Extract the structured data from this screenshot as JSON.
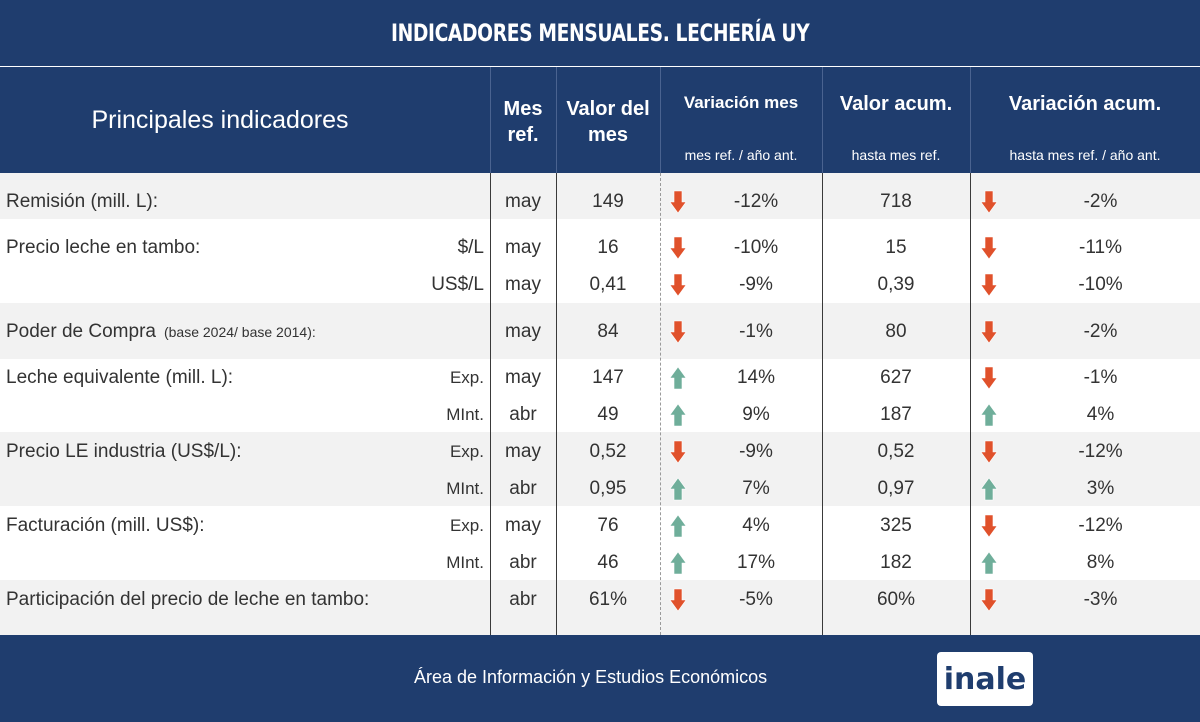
{
  "title": "INDICADORES MENSUALES. LECHERÍA UY",
  "header": {
    "principal": "Principales indicadores",
    "mes_ref_line1": "Mes",
    "mes_ref_line2": "ref.",
    "valor_line1": "Valor del",
    "valor_line2": "mes",
    "var_mes_top": "Variación mes",
    "var_mes_bottom": "mes ref. / año ant.",
    "val_acum_top": "Valor acum.",
    "val_acum_bottom": "hasta mes ref.",
    "var_acum_top": "Variación acum.",
    "var_acum_bottom": "hasta mes ref. / año ant."
  },
  "colors": {
    "navy": "#1f3d6e",
    "arrow_down": "#e0512b",
    "arrow_up": "#6fae9a",
    "row_shade": "#f2f2f2"
  },
  "rows": [
    {
      "label": "Remisión (mill. L):",
      "note": "",
      "unit": "",
      "mes": "may",
      "valor": "149",
      "var_mes_dir": "down",
      "var_mes": "-12%",
      "acum": "718",
      "var_acum_dir": "down",
      "var_acum": "-2%"
    },
    {
      "label": "Precio leche en tambo:",
      "note": "",
      "unit": "$/L",
      "mes": "may",
      "valor": "16",
      "var_mes_dir": "down",
      "var_mes": "-10%",
      "acum": "15",
      "var_acum_dir": "down",
      "var_acum": "-11%"
    },
    {
      "label": "",
      "note": "",
      "unit": "US$/L",
      "mes": "may",
      "valor": "0,41",
      "var_mes_dir": "down",
      "var_mes": "-9%",
      "acum": "0,39",
      "var_acum_dir": "down",
      "var_acum": "-10%"
    },
    {
      "label": "Poder de Compra",
      "note": "(base 2024/ base 2014):",
      "unit": "",
      "mes": "may",
      "valor": "84",
      "var_mes_dir": "down",
      "var_mes": "-1%",
      "acum": "80",
      "var_acum_dir": "down",
      "var_acum": "-2%"
    },
    {
      "label": "Leche equivalente (mill. L):",
      "note": "",
      "unit": "Exp.",
      "mes": "may",
      "valor": "147",
      "var_mes_dir": "up",
      "var_mes": "14%",
      "acum": "627",
      "var_acum_dir": "down",
      "var_acum": "-1%"
    },
    {
      "label": "",
      "note": "",
      "unit": "MInt.",
      "mes": "abr",
      "valor": "49",
      "var_mes_dir": "up",
      "var_mes": "9%",
      "acum": "187",
      "var_acum_dir": "up",
      "var_acum": "4%"
    },
    {
      "label": "Precio LE industria (US$/L):",
      "note": "",
      "unit": "Exp.",
      "mes": "may",
      "valor": "0,52",
      "var_mes_dir": "down",
      "var_mes": "-9%",
      "acum": "0,52",
      "var_acum_dir": "down",
      "var_acum": "-12%"
    },
    {
      "label": "",
      "note": "",
      "unit": "MInt.",
      "mes": "abr",
      "valor": "0,95",
      "var_mes_dir": "up",
      "var_mes": "7%",
      "acum": "0,97",
      "var_acum_dir": "up",
      "var_acum": "3%"
    },
    {
      "label": "Facturación (mill. US$):",
      "note": "",
      "unit": "Exp.",
      "mes": "may",
      "valor": "76",
      "var_mes_dir": "up",
      "var_mes": "4%",
      "acum": "325",
      "var_acum_dir": "down",
      "var_acum": "-12%"
    },
    {
      "label": "",
      "note": "",
      "unit": "MInt.",
      "mes": "abr",
      "valor": "46",
      "var_mes_dir": "up",
      "var_mes": "17%",
      "acum": "182",
      "var_acum_dir": "up",
      "var_acum": "8%"
    },
    {
      "label": "Participación del precio de leche en tambo:",
      "note": "",
      "unit": "",
      "mes": "abr",
      "valor": "61%",
      "var_mes_dir": "down",
      "var_mes": "-5%",
      "acum": "60%",
      "var_acum_dir": "down",
      "var_acum": "-3%"
    }
  ],
  "footer": {
    "text": "Área de Información y Estudios Económicos",
    "logo": "inale"
  }
}
